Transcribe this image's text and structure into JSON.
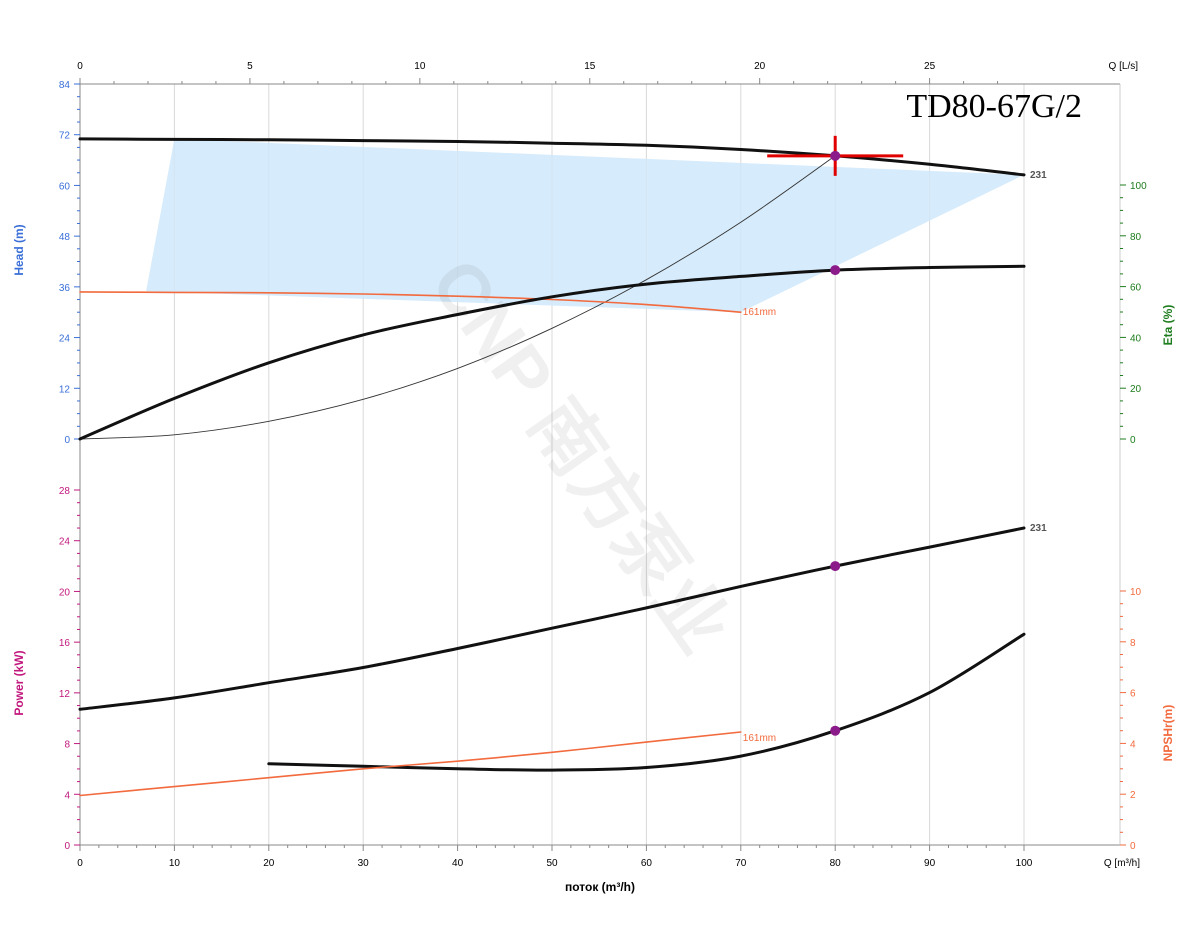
{
  "chart_data": {
    "type": "line",
    "title": "TD80-67G/2",
    "watermark": "CNP 南方泵业",
    "grid": true,
    "x_axis": {
      "label": "поток (m³/h)",
      "unit_label": "Q [m³/h]",
      "range": [
        0,
        100
      ],
      "ticks": [
        "0",
        "10",
        "20",
        "30",
        "40",
        "50",
        "60",
        "70",
        "80",
        "90",
        "100"
      ]
    },
    "x_top_axis": {
      "unit_label": "Q [L/s]",
      "range": [
        0,
        27.78
      ],
      "ticks": [
        "0",
        "5",
        "10",
        "15",
        "20",
        "25"
      ]
    },
    "head_axis": {
      "label": "Head (m)",
      "range": [
        0,
        84
      ],
      "ticks": [
        "0",
        "12",
        "24",
        "36",
        "48",
        "60",
        "72",
        "84"
      ],
      "color": "#3a6fd8"
    },
    "eta_axis": {
      "label": "Eta (%)",
      "range": [
        0,
        100
      ],
      "ticks": [
        "0",
        "20",
        "40",
        "60",
        "80",
        "100"
      ],
      "color": "#1e7d1e"
    },
    "power_axis": {
      "label": "Power (kW)",
      "range": [
        0,
        28
      ],
      "ticks": [
        "0",
        "4",
        "8",
        "12",
        "16",
        "20",
        "24",
        "28"
      ],
      "color": "#c2187e"
    },
    "npsh_axis": {
      "label": "NPSHr(m)",
      "range": [
        0,
        10
      ],
      "ticks": [
        "0",
        "2",
        "4",
        "6",
        "8",
        "10"
      ],
      "color": "#f26a3d"
    },
    "head_series": [
      {
        "name": "231",
        "color": "#111111",
        "x": [
          0,
          10,
          20,
          30,
          40,
          50,
          60,
          70,
          80,
          90,
          100
        ],
        "y": [
          71.0,
          70.9,
          70.8,
          70.6,
          70.4,
          70.0,
          69.5,
          68.5,
          67.0,
          65.0,
          62.5
        ]
      },
      {
        "name": "161mm",
        "color": "#f26a3d",
        "x": [
          0,
          10,
          20,
          30,
          40,
          50,
          60,
          70
        ],
        "y": [
          34.8,
          34.7,
          34.6,
          34.3,
          33.8,
          33.0,
          31.8,
          30.0
        ]
      }
    ],
    "system_curve": {
      "color": "#333333",
      "x": [
        0,
        10,
        20,
        30,
        40,
        50,
        60,
        70,
        80
      ],
      "y": [
        0,
        1.0,
        4.2,
        9.4,
        16.7,
        26.2,
        37.7,
        51.3,
        67.0
      ]
    },
    "operating_area": {
      "color": "#cfe8fa",
      "x": [
        10,
        10,
        100,
        100,
        70,
        7
      ],
      "y": [
        71.0,
        71.0,
        62.5,
        62.5,
        30.0,
        35.0
      ]
    },
    "efficiency_series": {
      "color": "#111111",
      "x": [
        0,
        10,
        20,
        30,
        40,
        50,
        60,
        70,
        80,
        90,
        100
      ],
      "y": [
        0,
        16,
        30,
        41,
        49,
        56,
        61,
        64,
        66.5,
        67.5,
        68
      ]
    },
    "power_series": {
      "name": "231",
      "color": "#111111",
      "x": [
        0,
        10,
        20,
        30,
        40,
        50,
        60,
        70,
        80,
        90,
        100
      ],
      "y": [
        10.7,
        11.6,
        12.8,
        14.0,
        15.5,
        17.1,
        18.7,
        20.4,
        22.0,
        23.5,
        25.0
      ]
    },
    "npsh_series": [
      {
        "color": "#111111",
        "x": [
          20,
          30,
          40,
          50,
          60,
          70,
          80,
          90,
          100
        ],
        "y": [
          3.2,
          3.1,
          3.0,
          2.95,
          3.05,
          3.5,
          4.5,
          6.0,
          8.3
        ]
      },
      {
        "name": "161mm",
        "color": "#f26a3d",
        "x": [
          0,
          10,
          20,
          30,
          40,
          50,
          60,
          70
        ],
        "y": [
          1.95,
          2.3,
          2.65,
          3.0,
          3.3,
          3.65,
          4.05,
          4.45
        ]
      }
    ],
    "duty_point": {
      "q": 80,
      "head": 67.0,
      "eta": 66.5,
      "power": 22.0,
      "npsh": 4.5,
      "marker_color": "#8b1a8b",
      "cross_color": "#e00000"
    }
  }
}
